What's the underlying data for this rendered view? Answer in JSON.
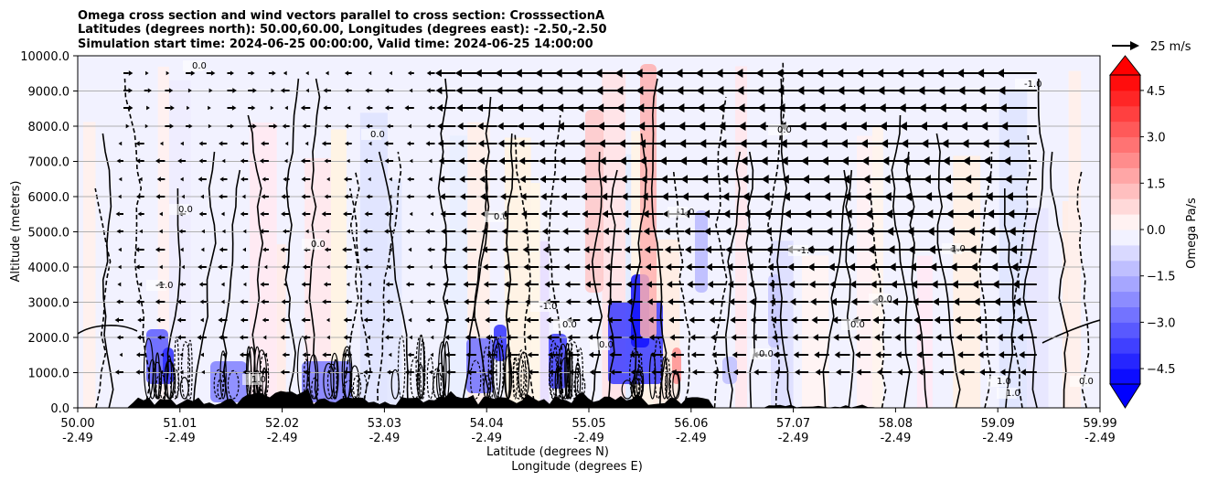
{
  "chart_data": {
    "type": "heatmap",
    "title_lines": [
      "Omega cross section and wind vectors parallel to cross section: CrosssectionA",
      "Latitudes (degrees north): 50.00,60.00, Longitudes (degrees east): -2.50,-2.50",
      "Simulation start time: 2024-06-25 00:00:00, Valid time: 2024-06-25 14:00:00"
    ],
    "ylabel": "Altitude (meters)",
    "xlabel_lat": "Latitude (degrees N)",
    "xlabel_lon": "Longitude (degrees E)",
    "ylim": [
      0,
      10000
    ],
    "yticks": [
      "0.0",
      "1000.0",
      "2000.0",
      "3000.0",
      "4000.0",
      "5000.0",
      "6000.0",
      "7000.0",
      "8000.0",
      "9000.0",
      "10000.0"
    ],
    "xticks_lat": [
      "50.00",
      "51.01",
      "52.02",
      "53.03",
      "54.04",
      "55.05",
      "56.06",
      "57.07",
      "58.08",
      "59.09",
      "59.99"
    ],
    "xticks_lon": [
      "-2.49",
      "-2.49",
      "-2.49",
      "-2.49",
      "-2.49",
      "-2.49",
      "-2.49",
      "-2.49",
      "-2.49",
      "-2.49",
      "-2.49"
    ],
    "colorbar": {
      "label": "Omega Pa/s",
      "ticks": [
        "4.5",
        "3.0",
        "1.5",
        "0.0",
        "−1.5",
        "−3.0",
        "−4.5"
      ],
      "range": [
        -5.0,
        5.0
      ],
      "step": 0.5
    },
    "quiver_key_label": "25 m/s",
    "contour_labels": [
      "0.0",
      "-1.0",
      "1.0",
      "0.0",
      "0.0",
      "-1.0",
      "0.0",
      "0.0",
      "1.0",
      "0.0",
      "-1.0",
      "0.0",
      "-1.0",
      "0.0",
      "0.0",
      "1.0",
      "-1.0",
      "0.0",
      "0.0",
      "0.0",
      "1.0"
    ],
    "colors": {
      "positive": "#ff0000",
      "negative": "#0000ff",
      "grid": "#b0b0b0"
    }
  }
}
